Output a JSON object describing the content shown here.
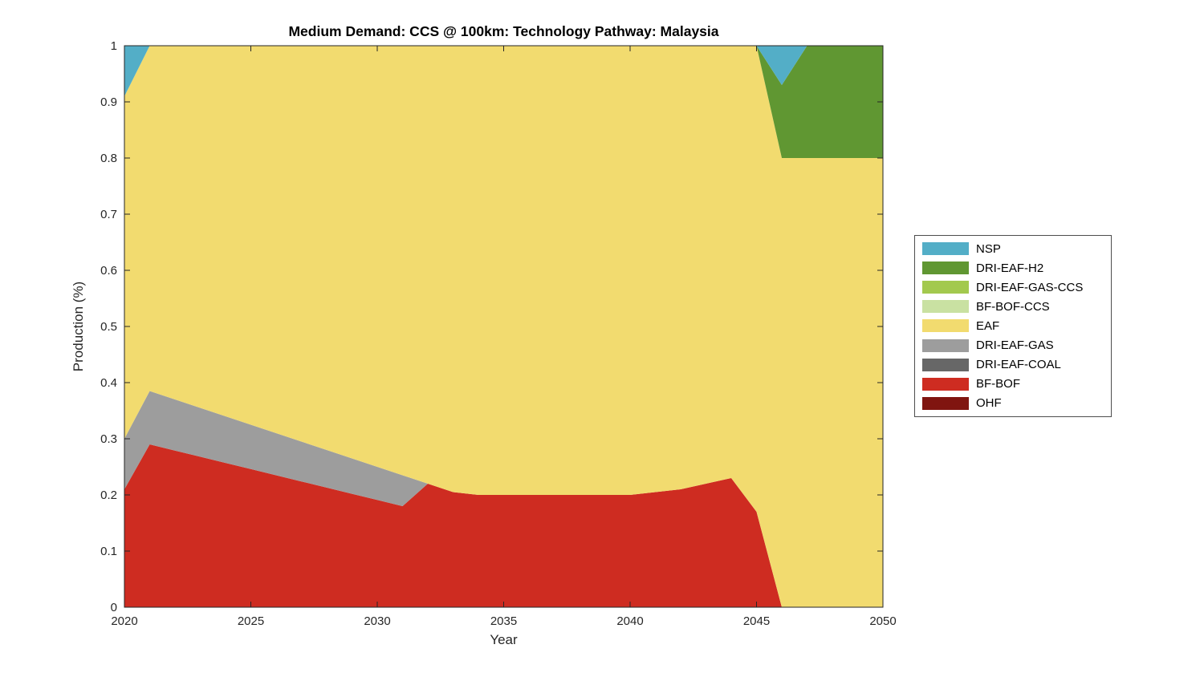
{
  "chart_data": {
    "type": "area",
    "stacked": true,
    "title": "Medium Demand: CCS @ 100km: Technology Pathway: Malaysia",
    "xlabel": "Year",
    "ylabel": "Production (%)",
    "xlim": [
      2020,
      2050
    ],
    "ylim": [
      0,
      1
    ],
    "xticks": [
      2020,
      2025,
      2030,
      2035,
      2040,
      2045,
      2050
    ],
    "yticks": [
      0,
      0.1,
      0.2,
      0.3,
      0.4,
      0.5,
      0.6,
      0.7,
      0.8,
      0.9,
      1
    ],
    "ytick_labels": [
      "0",
      "0.1",
      "0.2",
      "0.3",
      "0.4",
      "0.5",
      "0.6",
      "0.7",
      "0.8",
      "0.9",
      "1"
    ],
    "grid": false,
    "legend_position": "right-outside",
    "x": [
      2020,
      2021,
      2022,
      2023,
      2024,
      2025,
      2026,
      2027,
      2028,
      2029,
      2030,
      2031,
      2032,
      2033,
      2034,
      2035,
      2036,
      2037,
      2038,
      2039,
      2040,
      2041,
      2042,
      2043,
      2044,
      2045,
      2046,
      2047,
      2048,
      2049,
      2050
    ],
    "series_bottom_to_top": [
      {
        "name": "OHF",
        "color": "#801510",
        "values": [
          0,
          0,
          0,
          0,
          0,
          0,
          0,
          0,
          0,
          0,
          0,
          0,
          0,
          0,
          0,
          0,
          0,
          0,
          0,
          0,
          0,
          0,
          0,
          0,
          0,
          0,
          0,
          0,
          0,
          0,
          0
        ]
      },
      {
        "name": "BF-BOF",
        "color": "#CE2C21",
        "values": [
          0.21,
          0.29,
          0.279,
          0.268,
          0.257,
          0.246,
          0.235,
          0.224,
          0.213,
          0.202,
          0.191,
          0.18,
          0.22,
          0.205,
          0.2,
          0.2,
          0.2,
          0.2,
          0.2,
          0.2,
          0.2,
          0.205,
          0.21,
          0.22,
          0.23,
          0.17,
          0,
          0,
          0,
          0,
          0
        ]
      },
      {
        "name": "DRI-EAF-COAL",
        "color": "#676767",
        "values": [
          0,
          0,
          0,
          0,
          0,
          0,
          0,
          0,
          0,
          0,
          0,
          0,
          0,
          0,
          0,
          0,
          0,
          0,
          0,
          0,
          0,
          0,
          0,
          0,
          0,
          0,
          0,
          0,
          0,
          0,
          0
        ]
      },
      {
        "name": "DRI-EAF-GAS",
        "color": "#9D9D9D",
        "values": [
          0.09,
          0.095,
          0.091,
          0.087,
          0.083,
          0.079,
          0.075,
          0.071,
          0.067,
          0.063,
          0.059,
          0.055,
          0,
          0,
          0,
          0,
          0,
          0,
          0,
          0,
          0,
          0,
          0,
          0,
          0,
          0,
          0,
          0,
          0,
          0,
          0
        ]
      },
      {
        "name": "EAF",
        "color": "#F2DB6F",
        "values": [
          0.61,
          0.615,
          0.63,
          0.645,
          0.66,
          0.675,
          0.69,
          0.705,
          0.72,
          0.735,
          0.75,
          0.765,
          0.78,
          0.795,
          0.8,
          0.8,
          0.8,
          0.8,
          0.8,
          0.8,
          0.8,
          0.795,
          0.79,
          0.78,
          0.77,
          0.83,
          0.8,
          0.8,
          0.8,
          0.8,
          0.8
        ]
      },
      {
        "name": "BF-BOF-CCS",
        "color": "#C9E1A2",
        "values": [
          0,
          0,
          0,
          0,
          0,
          0,
          0,
          0,
          0,
          0,
          0,
          0,
          0,
          0,
          0,
          0,
          0,
          0,
          0,
          0,
          0,
          0,
          0,
          0,
          0,
          0,
          0,
          0,
          0,
          0,
          0
        ]
      },
      {
        "name": "DRI-EAF-GAS-CCS",
        "color": "#A3C94E",
        "values": [
          0,
          0,
          0,
          0,
          0,
          0,
          0,
          0,
          0,
          0,
          0,
          0,
          0,
          0,
          0,
          0,
          0,
          0,
          0,
          0,
          0,
          0,
          0,
          0,
          0,
          0,
          0,
          0,
          0,
          0,
          0
        ]
      },
      {
        "name": "DRI-EAF-H2",
        "color": "#609732",
        "values": [
          0,
          0,
          0,
          0,
          0,
          0,
          0,
          0,
          0,
          0,
          0,
          0,
          0,
          0,
          0,
          0,
          0,
          0,
          0,
          0,
          0,
          0,
          0,
          0,
          0,
          0,
          0.13,
          0.2,
          0.2,
          0.2,
          0.2
        ]
      },
      {
        "name": "NSP",
        "color": "#53AEC7",
        "values": [
          0.09,
          0,
          0,
          0,
          0,
          0,
          0,
          0,
          0,
          0,
          0,
          0,
          0,
          0,
          0,
          0,
          0,
          0,
          0,
          0,
          0,
          0,
          0,
          0,
          0,
          0,
          0.07,
          0,
          0,
          0,
          0
        ]
      }
    ],
    "legend_order_top_to_bottom": [
      "NSP",
      "DRI-EAF-H2",
      "DRI-EAF-GAS-CCS",
      "BF-BOF-CCS",
      "EAF",
      "DRI-EAF-GAS",
      "DRI-EAF-COAL",
      "BF-BOF",
      "OHF"
    ]
  }
}
